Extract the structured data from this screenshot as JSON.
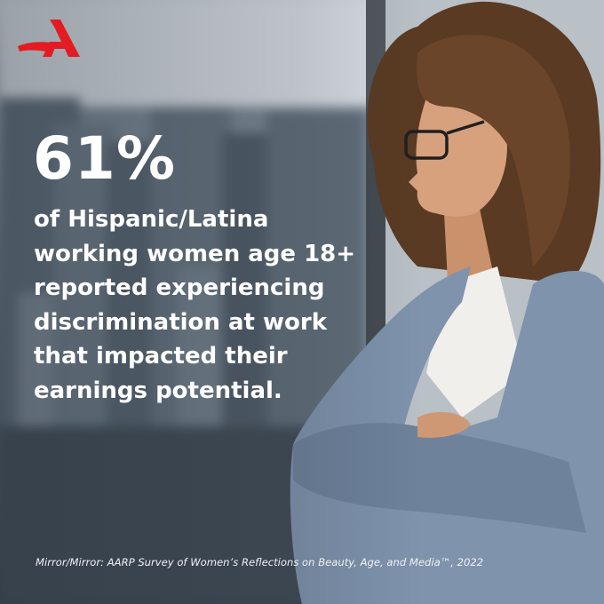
{
  "brand": {
    "logo_letter": "A",
    "logo_icon": "aarp-logo-icon",
    "brand_color": "#e31b23"
  },
  "headline": {
    "stat": "61%",
    "lines": [
      "of Hispanic/Latina",
      "working women age 18+",
      "reported experiencing",
      "discrimination at work",
      "that impacted their",
      "earnings potential."
    ]
  },
  "source": {
    "text": "Mirror/Mirror: AARP Survey of Women’s Reflections on Beauty, Age, and Media™, 2022"
  },
  "colors": {
    "text": "#ffffff",
    "blazer": "#7f93ad",
    "hair": "#5a3a22"
  }
}
